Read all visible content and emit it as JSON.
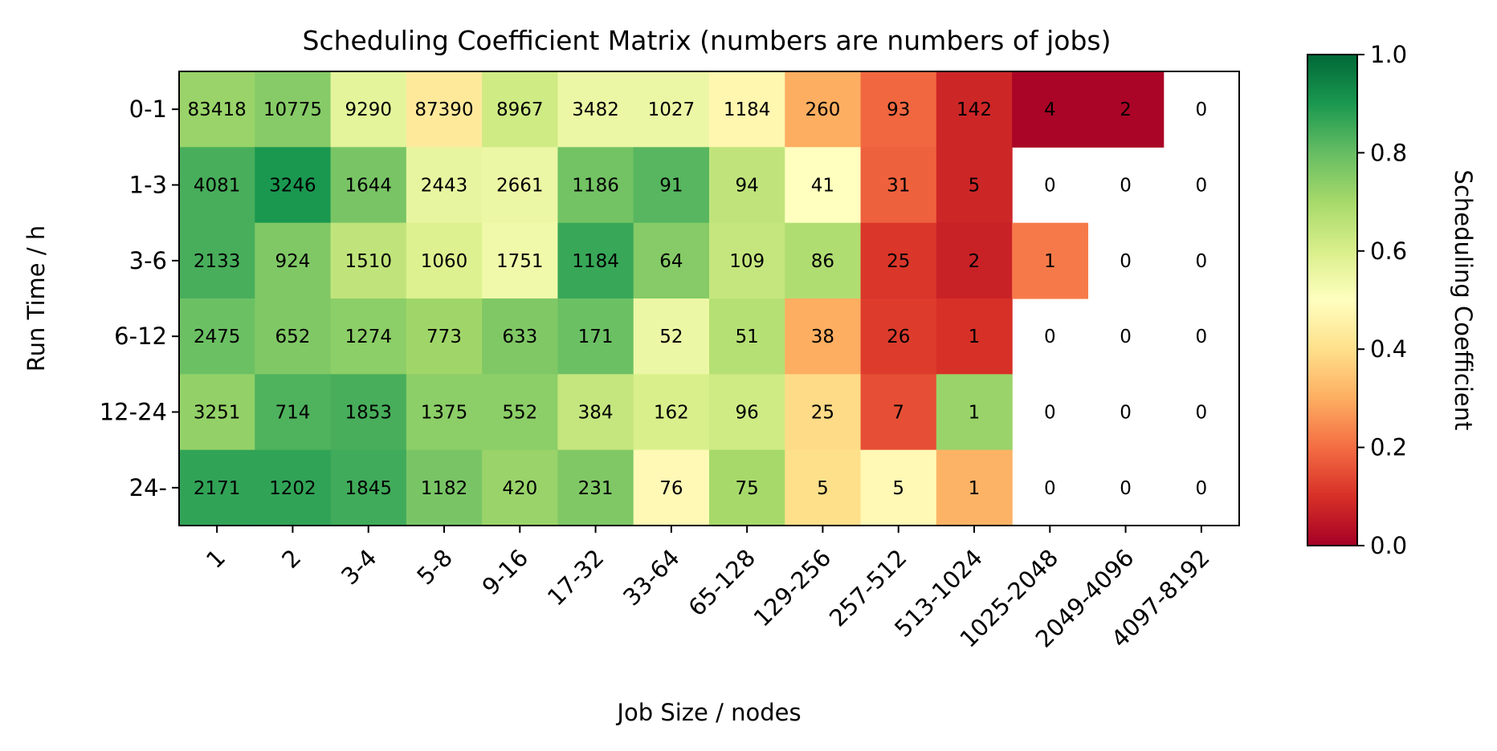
{
  "chart_data": {
    "type": "heatmap",
    "title": "Scheduling Coefficient Matrix (numbers are numbers of jobs)",
    "xlabel": "Job Size / nodes",
    "ylabel": "Run Time / h",
    "colorbar_label": "Scheduling Coefficient",
    "colormap": "RdYlGn",
    "clim": [
      0,
      1
    ],
    "colorbar_ticks": [
      "0.0",
      "0.2",
      "0.4",
      "0.6",
      "0.8",
      "1.0"
    ],
    "x_categories": [
      "1",
      "2",
      "3-4",
      "5-8",
      "9-16",
      "17-32",
      "33-64",
      "65-128",
      "129-256",
      "257-512",
      "513-1024",
      "1025-2048",
      "2049-4096",
      "4097-8192"
    ],
    "y_categories": [
      "0-1",
      "1-3",
      "3-6",
      "6-12",
      "12-24",
      "24-"
    ],
    "counts": [
      [
        "83418",
        "10775",
        "9290",
        "87390",
        "8967",
        "3482",
        "1027",
        "1184",
        "260",
        "93",
        "142",
        "4",
        "2",
        "0"
      ],
      [
        "4081",
        "3246",
        "1644",
        "2443",
        "2661",
        "1186",
        "91",
        "94",
        "41",
        "31",
        "5",
        "0",
        "0",
        "0"
      ],
      [
        "2133",
        "924",
        "1510",
        "1060",
        "1751",
        "1184",
        "64",
        "109",
        "86",
        "25",
        "2",
        "1",
        "0",
        "0"
      ],
      [
        "2475",
        "652",
        "1274",
        "773",
        "633",
        "171",
        "52",
        "51",
        "38",
        "26",
        "1",
        "0",
        "0",
        "0"
      ],
      [
        "3251",
        "714",
        "1853",
        "1375",
        "552",
        "384",
        "162",
        "96",
        "25",
        "7",
        "1",
        "0",
        "0",
        "0"
      ],
      [
        "2171",
        "1202",
        "1845",
        "1182",
        "420",
        "231",
        "76",
        "75",
        "5",
        "5",
        "1",
        "0",
        "0",
        "0"
      ]
    ],
    "coefficients": [
      [
        0.72,
        0.75,
        0.57,
        0.43,
        0.62,
        0.55,
        0.55,
        0.47,
        0.3,
        0.19,
        0.08,
        0.01,
        0.01,
        null
      ],
      [
        0.84,
        0.9,
        0.77,
        0.56,
        0.55,
        0.78,
        0.82,
        0.65,
        0.5,
        0.18,
        0.08,
        null,
        null,
        null
      ],
      [
        0.84,
        0.76,
        0.65,
        0.59,
        0.54,
        0.86,
        0.75,
        0.64,
        0.68,
        0.11,
        0.07,
        0.22,
        null,
        null
      ],
      [
        0.79,
        0.76,
        0.74,
        0.71,
        0.76,
        0.79,
        0.55,
        0.67,
        0.3,
        0.12,
        0.1,
        null,
        null,
        null
      ],
      [
        0.73,
        0.83,
        0.84,
        0.74,
        0.74,
        0.64,
        0.6,
        0.62,
        0.39,
        0.15,
        0.72,
        null,
        null,
        null
      ],
      [
        0.87,
        0.87,
        0.85,
        0.77,
        0.72,
        0.76,
        0.48,
        0.7,
        0.4,
        0.48,
        0.31,
        null,
        null,
        null
      ]
    ]
  }
}
